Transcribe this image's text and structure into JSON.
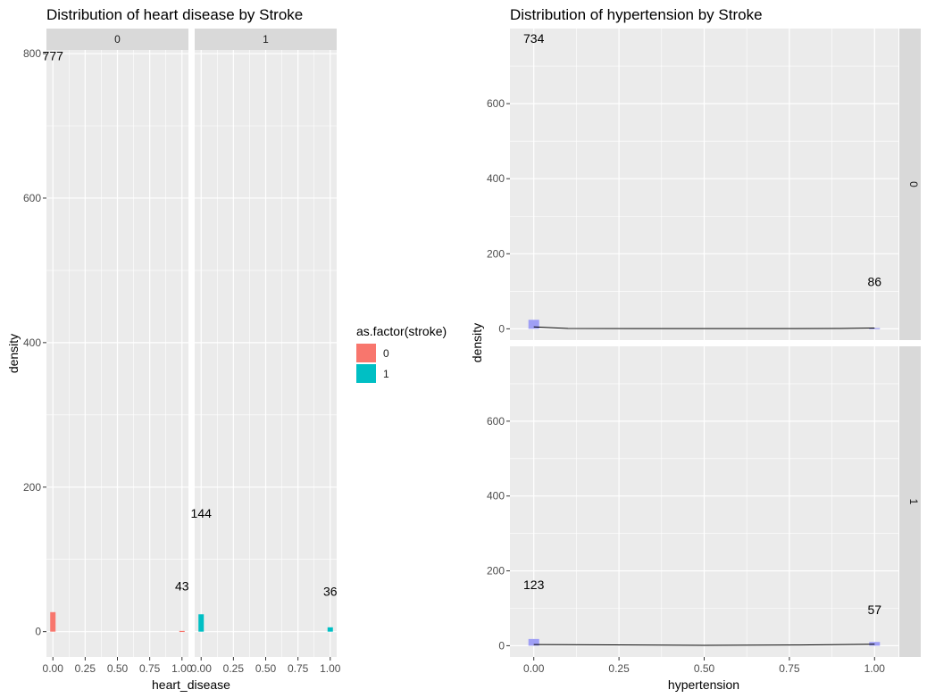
{
  "colors": {
    "panel_bg": "#ebebeb",
    "grid": "#ffffff",
    "strip_bg": "#d9d9d9",
    "stroke_0": "#f8766d",
    "stroke_1": "#00bfc4",
    "hist_fill": "#9f9ff5",
    "line": "#000000"
  },
  "legend": {
    "title": "as.factor(stroke)",
    "items": [
      {
        "label": "0",
        "color": "#f8766d"
      },
      {
        "label": "1",
        "color": "#00bfc4"
      }
    ]
  },
  "chart_data": [
    {
      "type": "bar",
      "title": "Distribution of heart disease by Stroke",
      "xlabel": "heart_disease",
      "ylabel": "density",
      "facet": "columns",
      "xlim": [
        -0.05,
        1.05
      ],
      "ylim": [
        -35,
        805
      ],
      "x_ticks": [
        "0.00",
        "0.25",
        "0.50",
        "0.75",
        "1.00"
      ],
      "y_ticks": [
        "0",
        "200",
        "400",
        "600",
        "800"
      ],
      "grid": true,
      "panels": [
        {
          "strip": "0",
          "bars": [
            {
              "x": 0,
              "y": 27
            },
            {
              "x": 1,
              "y": 1
            }
          ],
          "annotations": [
            {
              "text": "777",
              "x": 0,
              "y": 797
            },
            {
              "text": "43",
              "x": 1,
              "y": 63
            }
          ]
        },
        {
          "strip": "1",
          "bars": [
            {
              "x": 0,
              "y": 24
            },
            {
              "x": 1,
              "y": 6
            }
          ],
          "annotations": [
            {
              "text": "144",
              "x": 0,
              "y": 164
            },
            {
              "text": "36",
              "x": 1,
              "y": 56
            }
          ]
        }
      ]
    },
    {
      "type": "bar",
      "title": "Distribution of hypertension by Stroke",
      "xlabel": "hypertension",
      "ylabel": "density",
      "facet": "rows",
      "xlim": [
        -0.07,
        1.07
      ],
      "ylim": [
        -30,
        800
      ],
      "x_ticks": [
        "0.00",
        "0.25",
        "0.50",
        "0.75",
        "1.00"
      ],
      "y_ticks": [
        "0",
        "200",
        "400",
        "600"
      ],
      "grid": true,
      "panels": [
        {
          "strip": "0",
          "bars": [
            {
              "x": 0,
              "y": 24
            },
            {
              "x": 1,
              "y": 2
            }
          ],
          "density_line": [
            [
              0,
              5
            ],
            [
              0.05,
              3
            ],
            [
              0.1,
              1
            ],
            [
              0.3,
              0.5
            ],
            [
              0.7,
              0.5
            ],
            [
              0.9,
              1
            ],
            [
              1,
              2
            ]
          ],
          "annotations": [
            {
              "text": "734",
              "x": 0,
              "y": 774
            },
            {
              "text": "86",
              "x": 1,
              "y": 126
            }
          ]
        },
        {
          "strip": "1",
          "bars": [
            {
              "x": 0,
              "y": 18
            },
            {
              "x": 1,
              "y": 10
            }
          ],
          "density_line": [
            [
              0,
              3
            ],
            [
              0.3,
              2
            ],
            [
              0.5,
              1
            ],
            [
              0.78,
              2
            ],
            [
              1,
              4
            ]
          ],
          "annotations": [
            {
              "text": "123",
              "x": 0,
              "y": 163
            },
            {
              "text": "57",
              "x": 1,
              "y": 97
            }
          ]
        }
      ]
    }
  ]
}
